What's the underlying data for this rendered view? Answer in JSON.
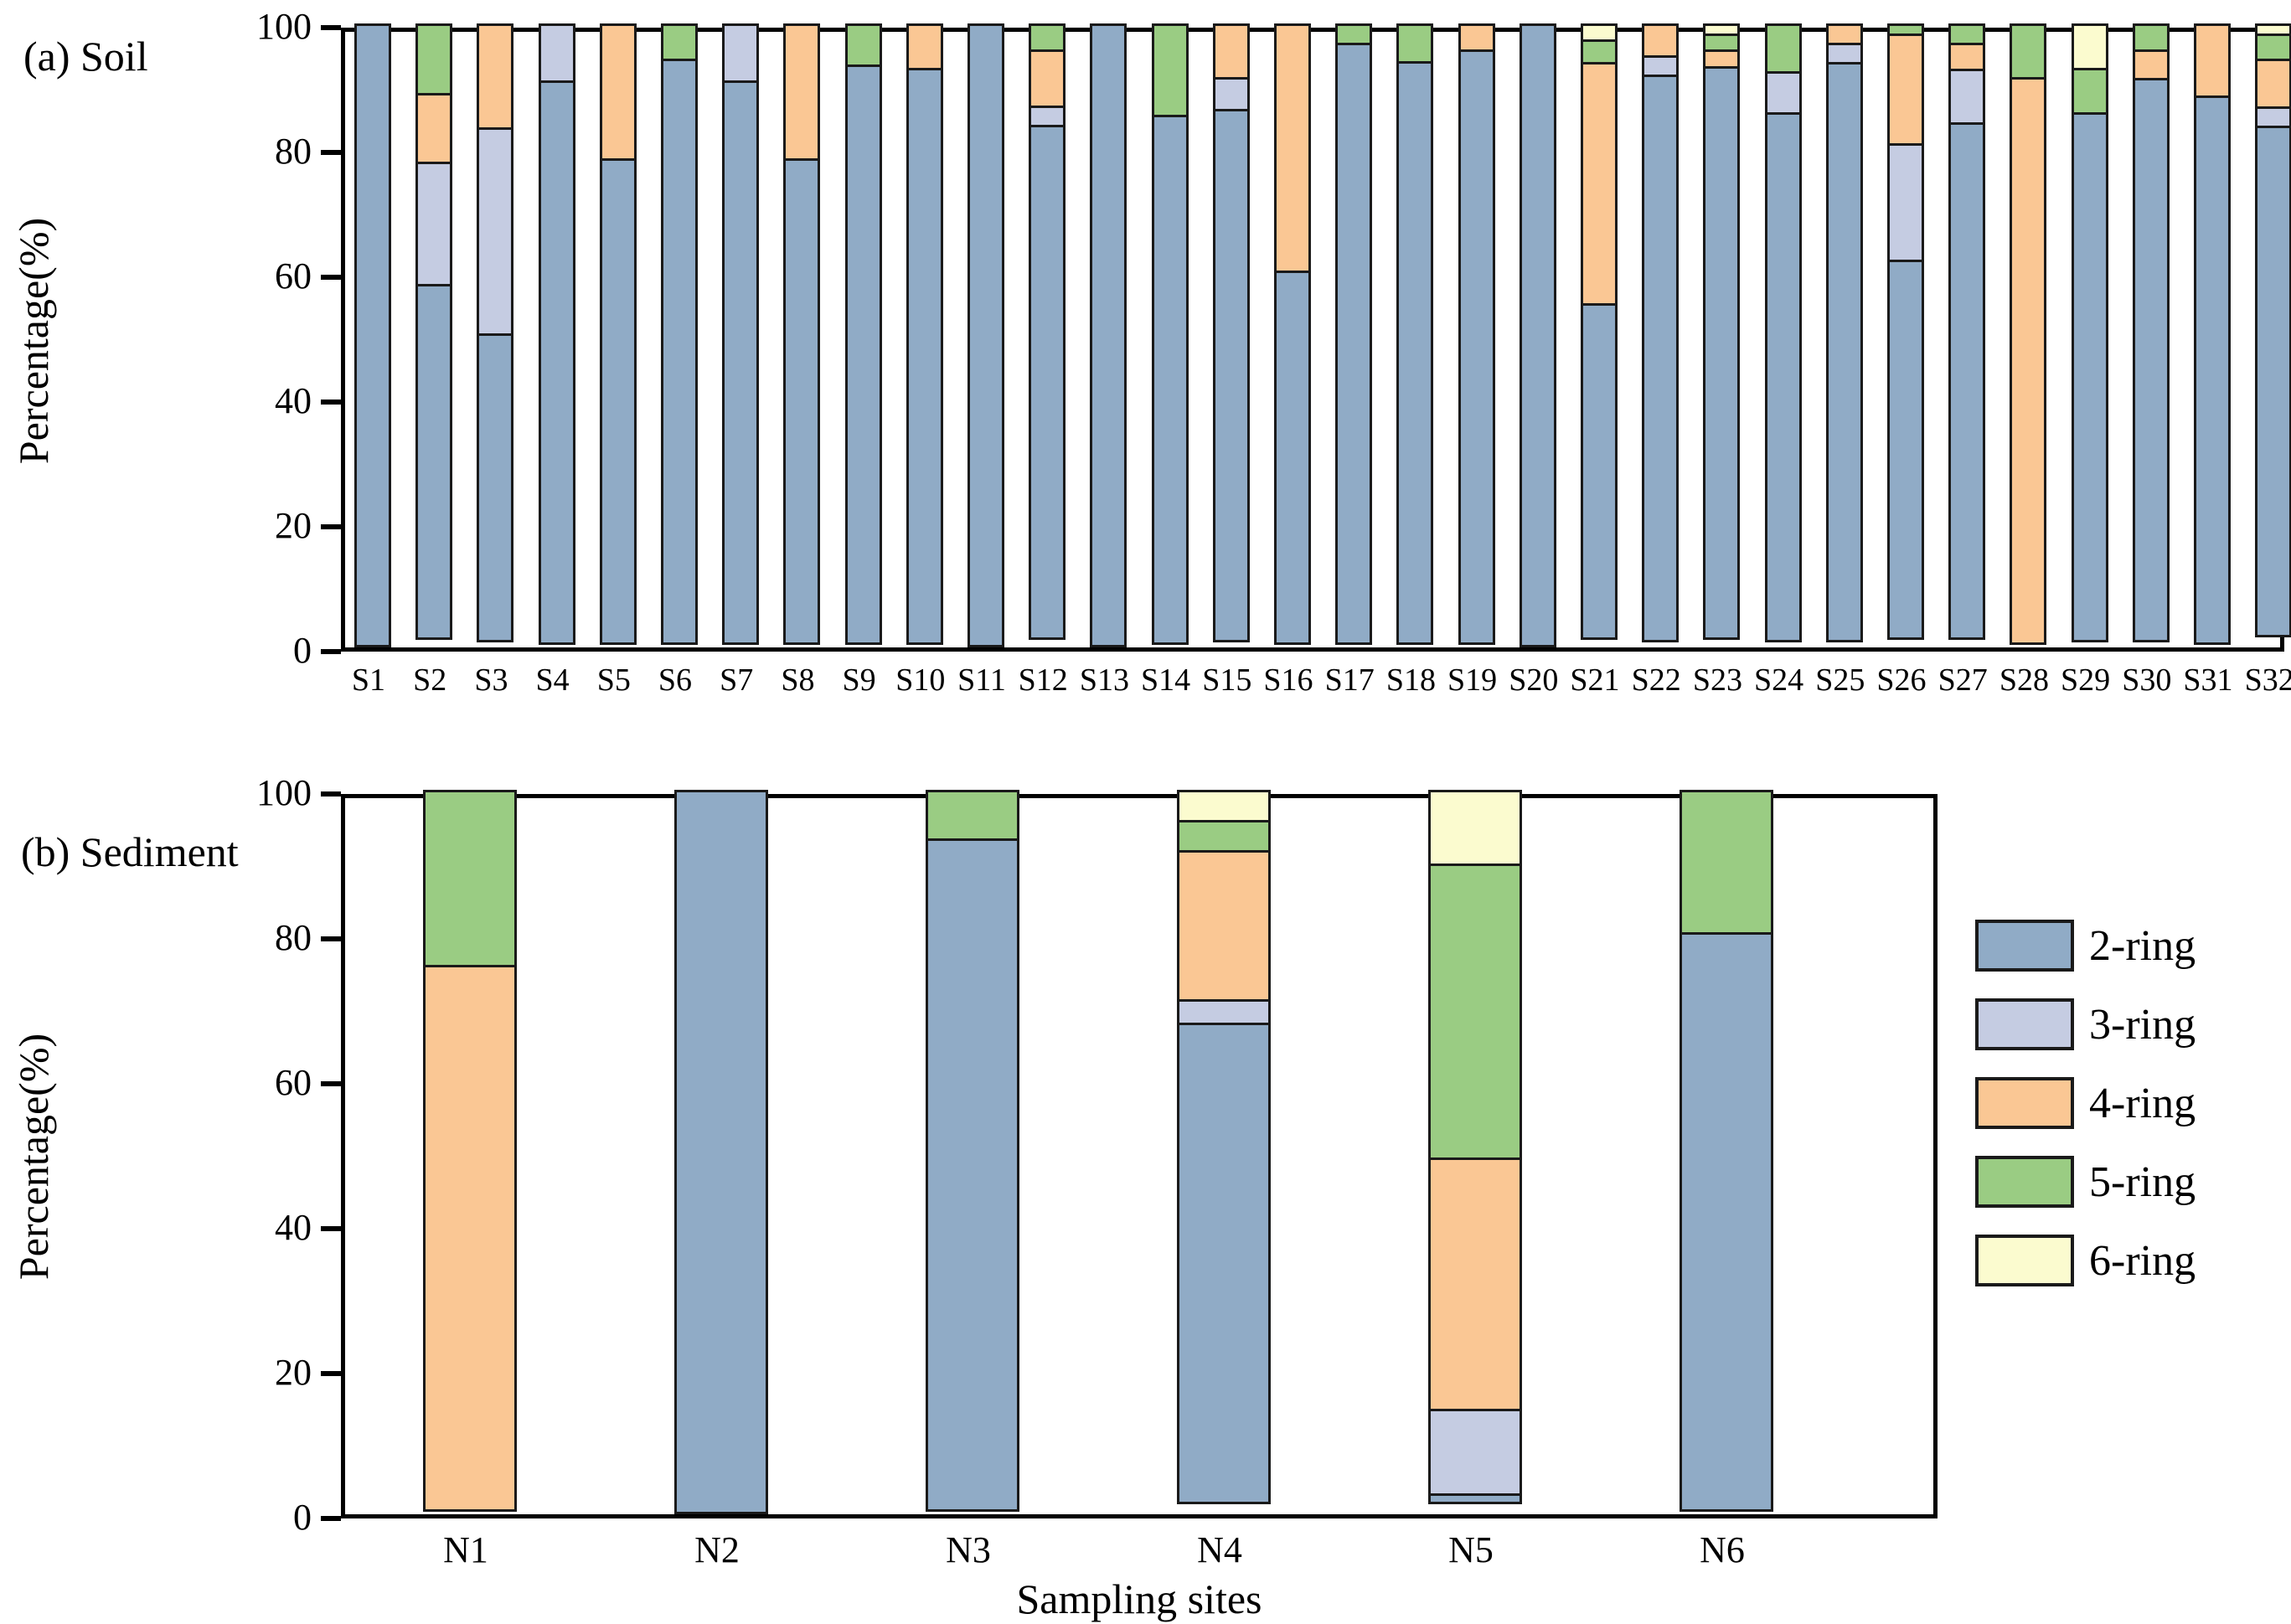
{
  "figure": {
    "panel_a_title": "(a) Soil",
    "panel_b_title": "(b) Sediment",
    "y_axis_label": "Percentage(%)",
    "x_axis_label": "Sampling sites"
  },
  "colors": {
    "ring2": "#90ABC6",
    "ring3": "#C5CCE2",
    "ring4": "#FAC794",
    "ring5": "#9ACC83",
    "ring6": "#FBFBCF"
  },
  "legend": [
    {
      "label": "2-ring",
      "color": "#90ABC6"
    },
    {
      "label": "3-ring",
      "color": "#C5CCE2"
    },
    {
      "label": "4-ring",
      "color": "#FAC794"
    },
    {
      "label": "5-ring",
      "color": "#9ACC83"
    },
    {
      "label": "6-ring",
      "color": "#FBFBCF"
    }
  ],
  "chart_data": [
    {
      "type": "bar",
      "stacked": true,
      "title": "(a) Soil",
      "ylabel": "Percentage(%)",
      "xlabel": "",
      "ylim": [
        0,
        100
      ],
      "yticks": [
        "0",
        "20",
        "40",
        "60",
        "80",
        "100"
      ],
      "grid": false,
      "categories": [
        "S1",
        "S2",
        "S3",
        "S4",
        "S5",
        "S6",
        "S7",
        "S8",
        "S9",
        "S10",
        "S11",
        "S12",
        "S13",
        "S14",
        "S15",
        "S16",
        "S17",
        "S18",
        "S19",
        "S20",
        "S21",
        "S22",
        "S23",
        "S24",
        "S25",
        "S26",
        "S27",
        "S28",
        "S29",
        "S30",
        "S31",
        "S32"
      ],
      "series": [
        {
          "name": "2-ring",
          "color": "#90ABC6",
          "values": [
            100,
            57,
            49.5,
            90.5,
            78,
            94,
            90.5,
            78,
            93,
            92.5,
            100,
            82.5,
            100,
            85,
            85.5,
            60,
            96.5,
            93.5,
            95.5,
            100,
            54,
            91,
            92,
            85,
            93,
            61,
            83,
            0,
            85,
            90.5,
            88,
            82
          ]
        },
        {
          "name": "3-ring",
          "color": "#C5CCE2",
          "values": [
            0,
            20,
            33.5,
            9.5,
            0,
            0,
            9.5,
            0,
            0,
            0,
            0,
            3.5,
            0,
            0,
            5.5,
            0,
            0,
            0,
            0,
            0,
            0,
            3.5,
            0,
            7,
            3.5,
            19,
            9,
            0,
            0,
            0,
            0,
            3.5
          ]
        },
        {
          "name": "4-ring",
          "color": "#FAC794",
          "values": [
            0,
            11.5,
            17,
            0,
            22,
            0,
            0,
            22,
            0,
            7.5,
            0,
            9.5,
            0,
            0,
            9,
            40,
            0,
            0,
            4.5,
            0,
            39,
            5.5,
            3,
            0,
            3.5,
            18,
            4.5,
            91,
            0,
            5,
            12,
            8
          ]
        },
        {
          "name": "5-ring",
          "color": "#9ACC83",
          "values": [
            0,
            11.5,
            0,
            0,
            0,
            6,
            0,
            0,
            7,
            0,
            0,
            4.5,
            0,
            15,
            0,
            0,
            3.5,
            6.5,
            0,
            0,
            4,
            0,
            3,
            8,
            0,
            2,
            3.5,
            9,
            7.5,
            4.5,
            0,
            4.5
          ]
        },
        {
          "name": "6-ring",
          "color": "#FBFBCF",
          "values": [
            0,
            0,
            0,
            0,
            0,
            0,
            0,
            0,
            0,
            0,
            0,
            0,
            0,
            0,
            0,
            0,
            0,
            0,
            0,
            0,
            3,
            0,
            2,
            0,
            0,
            0,
            0,
            0,
            7.5,
            0,
            0,
            2
          ]
        }
      ]
    },
    {
      "type": "bar",
      "stacked": true,
      "title": "(b) Sediment",
      "ylabel": "Percentage(%)",
      "xlabel": "Sampling sites",
      "ylim": [
        0,
        100
      ],
      "yticks": [
        "0",
        "20",
        "40",
        "60",
        "80",
        "100"
      ],
      "grid": false,
      "legend_position": "right",
      "categories": [
        "N1",
        "N2",
        "N3",
        "N4",
        "N5",
        "N6"
      ],
      "series": [
        {
          "name": "2-ring",
          "color": "#90ABC6",
          "values": [
            0,
            100,
            93,
            66.5,
            1.5,
            80
          ]
        },
        {
          "name": "3-ring",
          "color": "#C5CCE2",
          "values": [
            0,
            0,
            0,
            3.5,
            12,
            0
          ]
        },
        {
          "name": "4-ring",
          "color": "#FAC794",
          "values": [
            75.5,
            0,
            0,
            21,
            35,
            0
          ]
        },
        {
          "name": "5-ring",
          "color": "#9ACC83",
          "values": [
            24.5,
            0,
            7,
            4.5,
            41,
            20
          ]
        },
        {
          "name": "6-ring",
          "color": "#FBFBCF",
          "values": [
            0,
            0,
            0,
            4.5,
            10.5,
            0
          ]
        }
      ]
    }
  ]
}
